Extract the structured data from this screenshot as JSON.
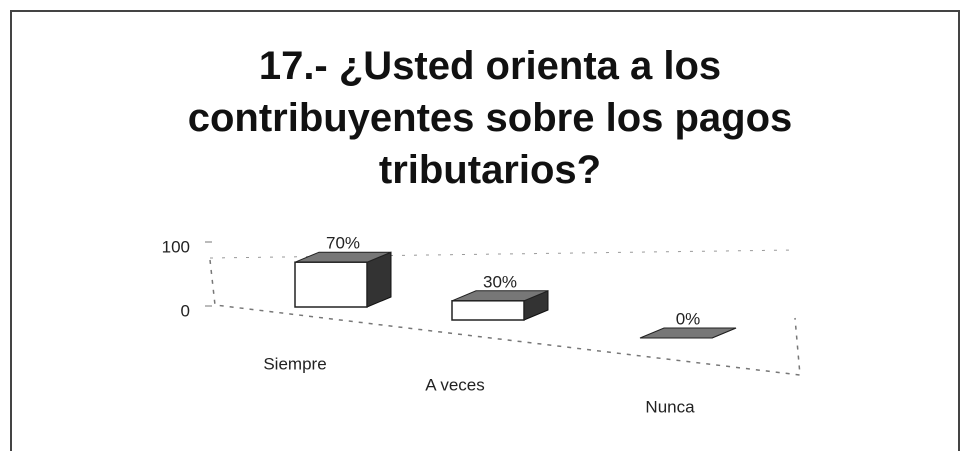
{
  "chart_data": {
    "type": "bar3d",
    "title": "17.- ¿Usted orienta a los contribuyentes sobre los pagos tributarios?",
    "categories": [
      "Siempre",
      "A veces",
      "Nunca"
    ],
    "values": [
      70,
      30,
      0
    ],
    "value_labels": [
      "70%",
      "30%",
      "0%"
    ],
    "ylim": [
      0,
      100
    ],
    "yticks": [
      0,
      100
    ],
    "color": "#ffffff"
  }
}
